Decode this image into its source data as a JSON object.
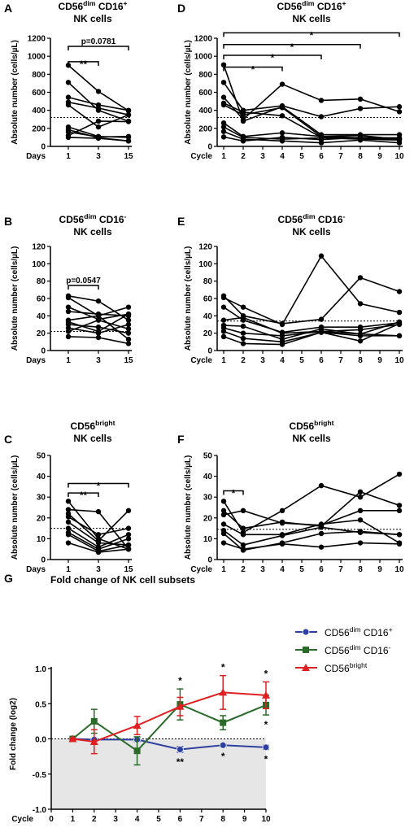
{
  "chart_data": [
    {
      "id": "A",
      "type": "line",
      "letter": "A",
      "title": "CD56|dim| CD16|+|NK cells",
      "title_lines": [
        [
          [
            "CD56",
            ""
          ],
          [
            "dim",
            "sup"
          ],
          [
            " CD16",
            ""
          ],
          [
            "+",
            "sup"
          ]
        ],
        [
          [
            "NK cells",
            ""
          ]
        ]
      ],
      "xlabel_lead": "Days",
      "x_categories": [
        "1",
        "3",
        "15"
      ],
      "ylabel": "Absolute number (cells/µL)",
      "ylim": [
        0,
        1200
      ],
      "yticks": [
        0,
        200,
        400,
        600,
        800,
        1000,
        1200
      ],
      "reference_y": 320,
      "series": [
        {
          "values": [
            900,
            610,
            395
          ]
        },
        {
          "values": [
            710,
            400,
            280
          ]
        },
        {
          "values": [
            545,
            460,
            400
          ]
        },
        {
          "values": [
            490,
            425,
            350
          ]
        },
        {
          "values": [
            460,
            215,
            350
          ]
        },
        {
          "values": [
            215,
            110,
            100
          ]
        },
        {
          "values": [
            185,
            95,
            60
          ]
        },
        {
          "values": [
            160,
            105,
            110
          ]
        },
        {
          "values": [
            120,
            280,
            275
          ]
        },
        {
          "values": [
            100,
            90,
            60
          ]
        }
      ],
      "brackets": [
        {
          "from": "1",
          "to": "3",
          "label": "**",
          "y": 940
        },
        {
          "from": "1",
          "to": "15",
          "label": "p=0.0781",
          "y": 1110
        }
      ]
    },
    {
      "id": "D",
      "type": "line",
      "letter": "D",
      "title": "CD56|dim| CD16|+|NK cells",
      "title_lines": [
        [
          [
            "CD56",
            ""
          ],
          [
            "dim",
            "sup"
          ],
          [
            " CD16",
            ""
          ],
          [
            "+",
            "sup"
          ]
        ],
        [
          [
            "NK cells",
            ""
          ]
        ]
      ],
      "xlabel_lead": "Cycle",
      "xlim": [
        1,
        10
      ],
      "xticks": [
        1,
        2,
        3,
        4,
        5,
        6,
        7,
        8,
        9,
        10
      ],
      "ylabel": "Absolute number (cells/µL)",
      "ylim": [
        0,
        1200
      ],
      "yticks": [
        0,
        200,
        400,
        600,
        800,
        1000,
        1200
      ],
      "reference_y": 320,
      "series": [
        {
          "x": [
            1,
            2,
            4,
            6,
            8,
            10
          ],
          "y": [
            905,
            280,
            440,
            130,
            130,
            130
          ]
        },
        {
          "x": [
            1,
            2,
            4,
            6,
            8,
            10
          ],
          "y": [
            710,
            400,
            450,
            330,
            420,
            440
          ]
        },
        {
          "x": [
            1,
            2,
            4,
            6,
            8,
            10
          ],
          "y": [
            545,
            300,
            690,
            510,
            525,
            385
          ]
        },
        {
          "x": [
            1,
            2,
            4,
            6,
            8,
            10
          ],
          "y": [
            480,
            380,
            340,
            100,
            90,
            80
          ]
        },
        {
          "x": [
            1,
            2,
            4,
            6,
            8,
            10
          ],
          "y": [
            460,
            350,
            430,
            110,
            95,
            95
          ]
        },
        {
          "x": [
            1,
            2,
            4,
            6,
            8,
            10
          ],
          "y": [
            260,
            110,
            150,
            110,
            120,
            80
          ]
        },
        {
          "x": [
            1,
            2,
            4,
            6,
            8,
            10
          ],
          "y": [
            215,
            100,
            80,
            95,
            80,
            70
          ]
        },
        {
          "x": [
            1,
            2,
            4,
            6,
            8,
            10
          ],
          "y": [
            165,
            80,
            60,
            40,
            70,
            40
          ]
        },
        {
          "x": [
            1,
            2,
            4,
            6,
            8,
            10
          ],
          "y": [
            105,
            60,
            100,
            75,
            100,
            85
          ]
        }
      ],
      "brackets": [
        {
          "from": 1,
          "to": 4,
          "label": "*",
          "y": 880
        },
        {
          "from": 1,
          "to": 6,
          "label": "*",
          "y": 1010
        },
        {
          "from": 1,
          "to": 8,
          "label": "*",
          "y": 1130
        },
        {
          "from": 1,
          "to": 10,
          "label": "*",
          "y": 1260
        }
      ]
    },
    {
      "id": "B",
      "type": "line",
      "letter": "B",
      "title": "CD56|dim| CD16|-|NK cells",
      "title_lines": [
        [
          [
            "CD56",
            ""
          ],
          [
            "dim",
            "sup"
          ],
          [
            " CD16",
            ""
          ],
          [
            "-",
            "sup"
          ]
        ],
        [
          [
            "NK cells",
            ""
          ]
        ]
      ],
      "xlabel_lead": "Days",
      "x_categories": [
        "1",
        "3",
        "15"
      ],
      "ylabel": "Absolute number (cells/µL)",
      "ylim": [
        0,
        120
      ],
      "yticks": [
        0,
        20,
        40,
        60,
        80,
        100,
        120
      ],
      "reference_y": 22,
      "series": [
        {
          "values": [
            63,
            57,
            35
          ]
        },
        {
          "values": [
            61,
            40,
            13
          ]
        },
        {
          "values": [
            50,
            36,
            42
          ]
        },
        {
          "values": [
            45,
            42,
            40
          ]
        },
        {
          "values": [
            35,
            40,
            50
          ]
        },
        {
          "values": [
            33,
            22,
            42
          ]
        },
        {
          "values": [
            30,
            27,
            20
          ]
        },
        {
          "values": [
            26,
            20,
            30
          ]
        },
        {
          "values": [
            22,
            35,
            25
          ]
        },
        {
          "values": [
            16,
            15,
            8
          ]
        }
      ],
      "brackets": [
        {
          "from": "1",
          "to": "3",
          "label": "p=0.0547",
          "y": 75
        }
      ]
    },
    {
      "id": "E",
      "type": "line",
      "letter": "E",
      "title": "CD56|dim| CD16|-|NK cells",
      "title_lines": [
        [
          [
            "CD56",
            ""
          ],
          [
            "dim",
            "sup"
          ],
          [
            " CD16",
            ""
          ],
          [
            "-",
            "sup"
          ]
        ],
        [
          [
            "NK cells",
            ""
          ]
        ]
      ],
      "xlabel_lead": "Cycle",
      "xlim": [
        1,
        10
      ],
      "xticks": [
        1,
        2,
        3,
        4,
        5,
        6,
        7,
        8,
        9,
        10
      ],
      "ylabel": "Absolute number (cells/µL)",
      "ylim": [
        0,
        120
      ],
      "yticks": [
        0,
        20,
        40,
        60,
        80,
        100,
        120
      ],
      "reference_y": 34,
      "series": [
        {
          "x": [
            1,
            2,
            4,
            6,
            8,
            10
          ],
          "y": [
            61,
            50,
            30,
            109,
            54,
            44
          ]
        },
        {
          "x": [
            1,
            2,
            4,
            6,
            8,
            10
          ],
          "y": [
            63,
            40,
            31,
            36,
            84,
            68
          ]
        },
        {
          "x": [
            1,
            2,
            4,
            6,
            8,
            10
          ],
          "y": [
            50,
            35,
            21,
            27,
            27,
            32
          ]
        },
        {
          "x": [
            1,
            2,
            4,
            6,
            8,
            10
          ],
          "y": [
            35,
            38,
            20,
            22,
            24,
            30
          ]
        },
        {
          "x": [
            1,
            2,
            4,
            6,
            8,
            10
          ],
          "y": [
            29,
            28,
            13,
            25,
            19,
            17
          ]
        },
        {
          "x": [
            1,
            2,
            4,
            6,
            8,
            10
          ],
          "y": [
            26,
            20,
            17,
            22,
            19,
            33
          ]
        },
        {
          "x": [
            1,
            2,
            4,
            6,
            8,
            10
          ],
          "y": [
            22,
            14,
            10,
            21,
            11,
            31
          ]
        },
        {
          "x": [
            1,
            2,
            4,
            6,
            8,
            10
          ],
          "y": [
            16,
            8,
            7,
            21,
            17,
            17
          ]
        }
      ],
      "brackets": []
    },
    {
      "id": "C",
      "type": "line",
      "letter": "C",
      "title": "CD56|bright|NK cells",
      "title_lines": [
        [
          [
            "CD56",
            ""
          ],
          [
            "bright",
            "sup"
          ]
        ],
        [
          [
            "NK cells",
            ""
          ]
        ]
      ],
      "xlabel_lead": "Days",
      "x_categories": [
        "1",
        "3",
        "15"
      ],
      "ylabel": "Absolute number (cells/µL)",
      "ylim": [
        0,
        50
      ],
      "yticks": [
        0,
        10,
        20,
        30,
        40,
        50
      ],
      "reference_y": 15,
      "series": [
        {
          "values": [
            28,
            10,
            5
          ]
        },
        {
          "values": [
            24,
            23,
            5
          ]
        },
        {
          "values": [
            22,
            9,
            23.5
          ]
        },
        {
          "values": [
            20.5,
            12,
            15
          ]
        },
        {
          "values": [
            18,
            8,
            7
          ]
        },
        {
          "values": [
            15,
            6,
            12
          ]
        },
        {
          "values": [
            13,
            5,
            10
          ]
        },
        {
          "values": [
            12,
            4,
            7
          ]
        },
        {
          "values": [
            8,
            3.5,
            5
          ]
        }
      ],
      "brackets": [
        {
          "from": "1",
          "to": "3",
          "label": "**",
          "y": 32
        },
        {
          "from": "1",
          "to": "15",
          "label": "*",
          "y": 36.5
        }
      ]
    },
    {
      "id": "F",
      "type": "line",
      "letter": "F",
      "title": "CD56|bright|NK cells",
      "title_lines": [
        [
          [
            "CD56",
            ""
          ],
          [
            "bright",
            "sup"
          ]
        ],
        [
          [
            "NK cells",
            ""
          ]
        ]
      ],
      "xlabel_lead": "Cycle",
      "xlim": [
        1,
        10
      ],
      "xticks": [
        1,
        2,
        3,
        4,
        5,
        6,
        7,
        8,
        9,
        10
      ],
      "ylabel": "Absolute number (cells/µL)",
      "ylim": [
        0,
        50
      ],
      "yticks": [
        0,
        10,
        20,
        30,
        40,
        50
      ],
      "reference_y": 14.5,
      "series": [
        {
          "x": [
            1,
            2,
            4,
            6,
            8,
            10
          ],
          "y": [
            28,
            13,
            23.5,
            35.5,
            30,
            41
          ]
        },
        {
          "x": [
            1,
            2,
            4,
            6,
            8,
            10
          ],
          "y": [
            23.5,
            15,
            18,
            16,
            32.5,
            26
          ]
        },
        {
          "x": [
            1,
            2,
            4,
            6,
            8,
            10
          ],
          "y": [
            21.5,
            23.5,
            17.5,
            16.5,
            23.5,
            23.5
          ]
        },
        {
          "x": [
            1,
            2,
            4,
            6,
            8,
            10
          ],
          "y": [
            17,
            12,
            12,
            17,
            19,
            8
          ]
        },
        {
          "x": [
            1,
            2,
            4,
            6,
            8,
            10
          ],
          "y": [
            14,
            7,
            11.5,
            15.5,
            13,
            12
          ]
        },
        {
          "x": [
            1,
            2,
            4,
            6,
            8,
            10
          ],
          "y": [
            12.5,
            4.5,
            8,
            12.5,
            13.5,
            12
          ]
        },
        {
          "x": [
            1,
            2,
            4,
            6,
            8,
            10
          ],
          "y": [
            8,
            5,
            7.5,
            6,
            8,
            7.5
          ]
        }
      ],
      "brackets": [
        {
          "from": 1,
          "to": 2,
          "label": "*",
          "y": 33
        }
      ]
    }
  ],
  "panel_g": {
    "type": "line",
    "letter": "G",
    "title": "Fold change of NK cell subsets",
    "ylabel": "Fold change (log2)",
    "xlabel_lead": "Cycle",
    "xlim": [
      0,
      10
    ],
    "xticks": [
      0,
      1,
      2,
      3,
      4,
      5,
      6,
      7,
      8,
      9,
      10
    ],
    "ylim": [
      -1.0,
      1.0
    ],
    "yticks": [
      -1.0,
      -0.5,
      0.0,
      0.5,
      1.0
    ],
    "ytick_labels": [
      "-1.0",
      "-0.5",
      "0.0",
      "0.5",
      "1.0"
    ],
    "shaded_below_zero": true,
    "series": [
      {
        "name": "CD56|dim| CD16|+|",
        "legend_parts": [
          [
            "CD56",
            ""
          ],
          [
            "dim",
            "sup"
          ],
          [
            " CD16",
            ""
          ],
          [
            "+",
            "sup"
          ]
        ],
        "color": "#2d3fa0",
        "marker": "circle",
        "x": [
          1,
          2,
          4,
          6,
          8,
          10
        ],
        "y": [
          0.0,
          -0.01,
          -0.01,
          -0.15,
          -0.09,
          -0.12
        ],
        "err": [
          0.01,
          0.02,
          0.03,
          0.04,
          0.02,
          0.03
        ],
        "sig": [
          {
            "x": 6,
            "label": "**",
            "pos": "below"
          },
          {
            "x": 8,
            "label": "*",
            "pos": "below"
          },
          {
            "x": 10,
            "label": "*",
            "pos": "below"
          }
        ]
      },
      {
        "name": "CD56|dim| CD16|-|",
        "legend_parts": [
          [
            "CD56",
            ""
          ],
          [
            "dim",
            "sup"
          ],
          [
            " CD16",
            ""
          ],
          [
            "-",
            "sup"
          ]
        ],
        "color": "#2a6b2a",
        "marker": "square",
        "x": [
          1,
          2,
          4,
          6,
          8,
          10
        ],
        "y": [
          0.0,
          0.25,
          -0.17,
          0.49,
          0.23,
          0.48
        ],
        "err": [
          0.01,
          0.17,
          0.2,
          0.22,
          0.1,
          0.14
        ],
        "sig": [
          {
            "x": 6,
            "label": "*",
            "pos": "above"
          },
          {
            "x": 10,
            "label": "*",
            "pos": "below"
          }
        ]
      },
      {
        "name": "CD56|bright|",
        "legend_parts": [
          [
            "CD56",
            ""
          ],
          [
            "bright",
            "sup"
          ]
        ],
        "color": "#e02020",
        "marker": "triangle",
        "x": [
          1,
          2,
          4,
          6,
          8,
          10
        ],
        "y": [
          0.0,
          -0.04,
          0.19,
          0.46,
          0.66,
          0.62
        ],
        "err": [
          0.01,
          0.17,
          0.13,
          0.13,
          0.24,
          0.19
        ],
        "sig": [
          {
            "x": 8,
            "label": "*",
            "pos": "above"
          },
          {
            "x": 10,
            "label": "*",
            "pos": "above"
          }
        ]
      }
    ]
  }
}
